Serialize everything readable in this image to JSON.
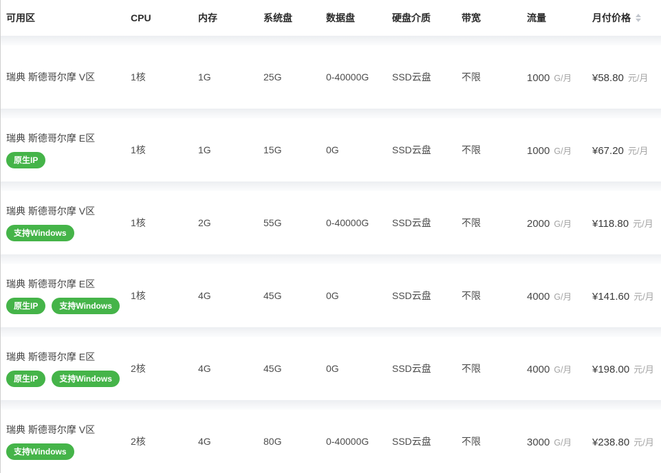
{
  "table": {
    "columns": [
      {
        "key": "zone",
        "label": "可用区"
      },
      {
        "key": "cpu",
        "label": "CPU"
      },
      {
        "key": "memory",
        "label": "内存"
      },
      {
        "key": "system_disk",
        "label": "系统盘"
      },
      {
        "key": "data_disk",
        "label": "数据盘"
      },
      {
        "key": "disk_media",
        "label": "硬盘介质"
      },
      {
        "key": "bandwidth",
        "label": "带宽"
      },
      {
        "key": "traffic",
        "label": "流量"
      },
      {
        "key": "price",
        "label": "月付价格"
      }
    ],
    "sort_icon": "caret-up-down",
    "traffic_unit": "G/月",
    "price_unit": "元/月",
    "badge_names": {
      "原生IP": "native-ip-badge",
      "支持Windows": "windows-support-badge"
    },
    "rows": [
      {
        "zone": "瑞典 斯德哥尔摩 V区",
        "badges": [],
        "cpu": "1核",
        "memory": "1G",
        "system_disk": "25G",
        "data_disk": "0-40000G",
        "disk_media": "SSD云盘",
        "bandwidth": "不限",
        "traffic": "1000",
        "price": "¥58.80"
      },
      {
        "zone": "瑞典 斯德哥尔摩 E区",
        "badges": [
          "原生IP"
        ],
        "cpu": "1核",
        "memory": "1G",
        "system_disk": "15G",
        "data_disk": "0G",
        "disk_media": "SSD云盘",
        "bandwidth": "不限",
        "traffic": "1000",
        "price": "¥67.20"
      },
      {
        "zone": "瑞典 斯德哥尔摩 V区",
        "badges": [
          "支持Windows"
        ],
        "cpu": "1核",
        "memory": "2G",
        "system_disk": "55G",
        "data_disk": "0-40000G",
        "disk_media": "SSD云盘",
        "bandwidth": "不限",
        "traffic": "2000",
        "price": "¥118.80"
      },
      {
        "zone": "瑞典 斯德哥尔摩 E区",
        "badges": [
          "原生IP",
          "支持Windows"
        ],
        "cpu": "1核",
        "memory": "4G",
        "system_disk": "45G",
        "data_disk": "0G",
        "disk_media": "SSD云盘",
        "bandwidth": "不限",
        "traffic": "4000",
        "price": "¥141.60"
      },
      {
        "zone": "瑞典 斯德哥尔摩 E区",
        "badges": [
          "原生IP",
          "支持Windows"
        ],
        "cpu": "2核",
        "memory": "4G",
        "system_disk": "45G",
        "data_disk": "0G",
        "disk_media": "SSD云盘",
        "bandwidth": "不限",
        "traffic": "4000",
        "price": "¥198.00"
      },
      {
        "zone": "瑞典 斯德哥尔摩 V区",
        "badges": [
          "支持Windows"
        ],
        "cpu": "2核",
        "memory": "4G",
        "system_disk": "80G",
        "data_disk": "0-40000G",
        "disk_media": "SSD云盘",
        "bandwidth": "不限",
        "traffic": "3000",
        "price": "¥238.80"
      }
    ],
    "colors": {
      "badge_green": "#45b449",
      "header_text": "#2b2b2b",
      "body_text": "#4d4d4d",
      "unit_text": "#a3a3a3",
      "row_gap": "#eef0f2",
      "left_border": "#cfcfcf"
    }
  }
}
